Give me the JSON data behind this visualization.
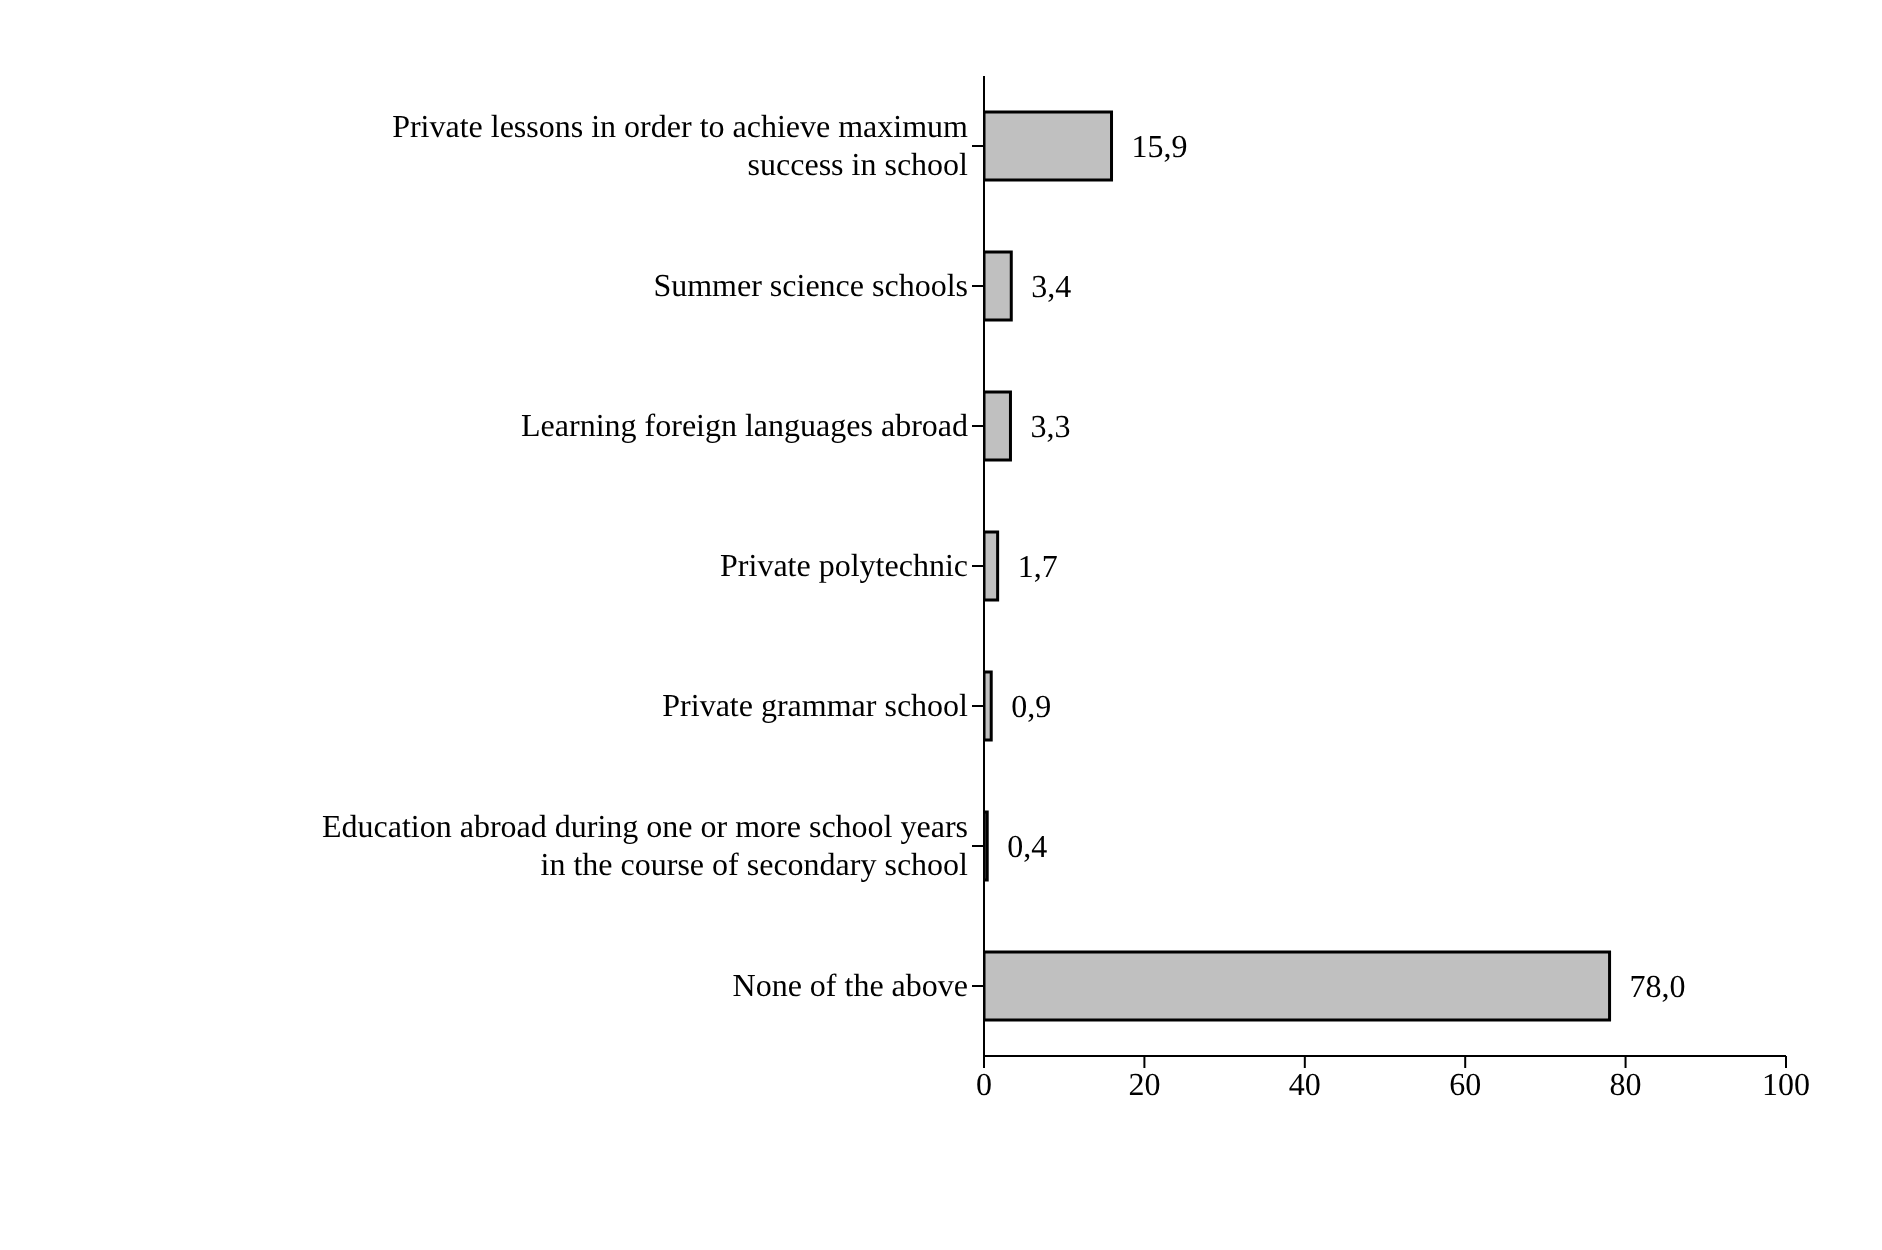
{
  "chart_data": {
    "type": "bar",
    "orientation": "horizontal",
    "categories": [
      "Private lessons in order to achieve maximum success in school",
      "Summer science schools",
      "Learning foreign languages abroad",
      "Private polytechnic",
      "Private grammar school",
      "Education abroad during one or more school years in the course of secondary school",
      "None of the above"
    ],
    "values": [
      15.9,
      3.4,
      3.3,
      1.7,
      0.9,
      0.4,
      78.0
    ],
    "value_labels": [
      "15,9",
      "3,4",
      "3,3",
      "1,7",
      "0,9",
      "0,4",
      "78,0"
    ],
    "color": "#c0c0c0",
    "xlim": [
      0,
      100
    ],
    "xticks": [
      0,
      20,
      40,
      60,
      80,
      100
    ],
    "grid": false,
    "legend": false
  }
}
